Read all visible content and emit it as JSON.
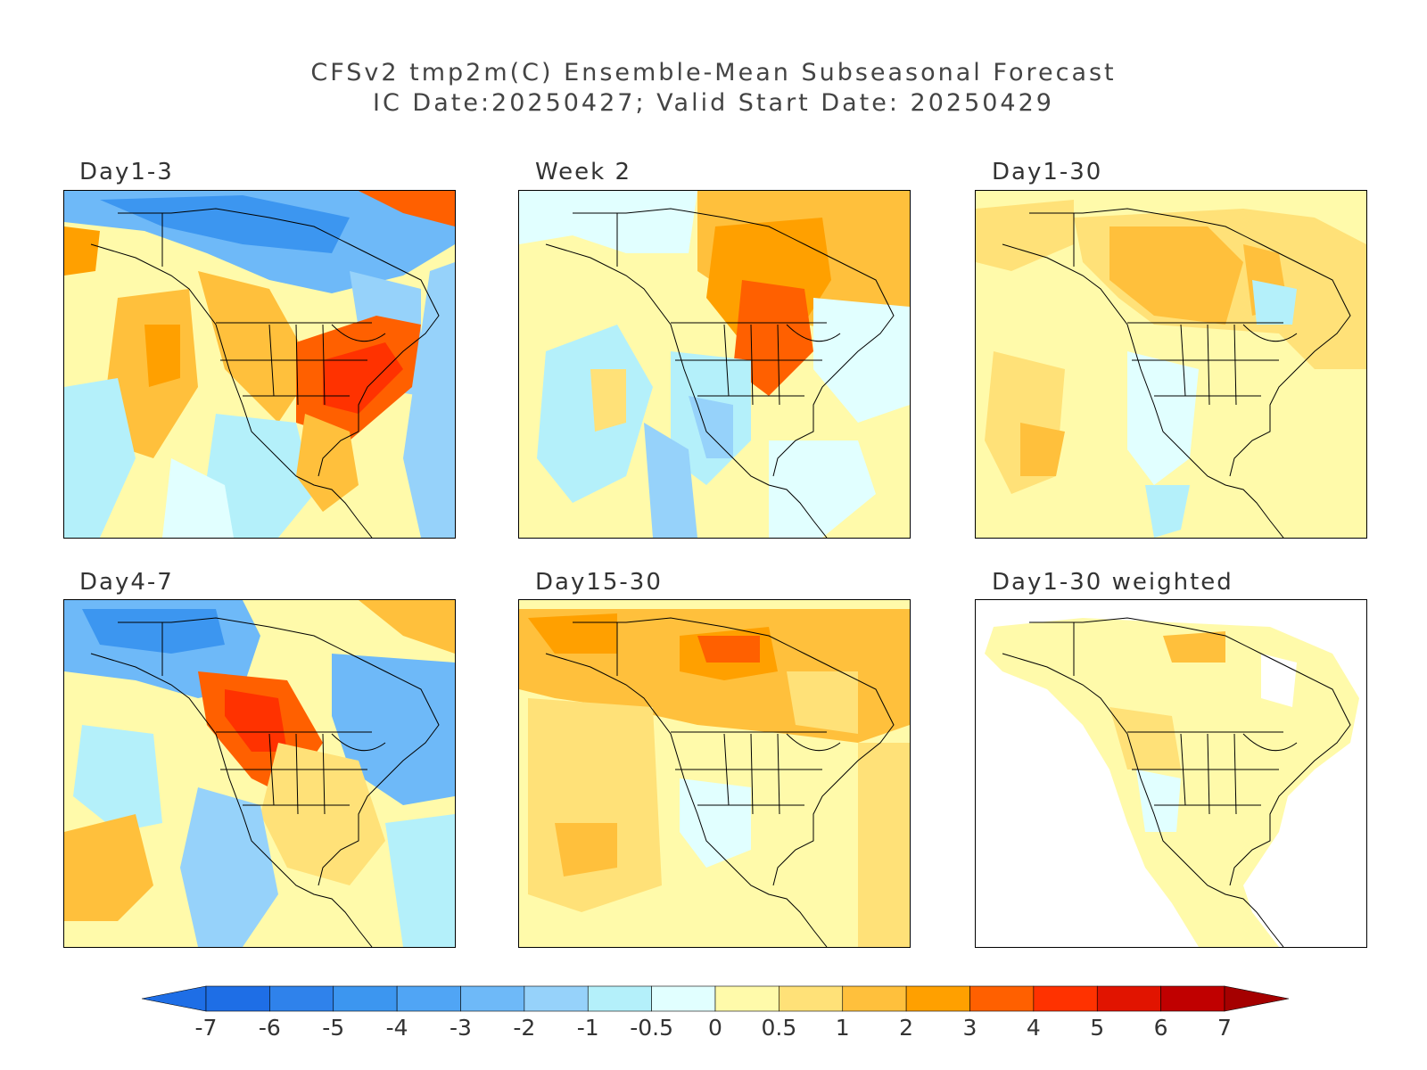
{
  "title": {
    "line1": "CFSv2 tmp2m(C) Ensemble-Mean Subseasonal Forecast",
    "line2": "IC Date:20250427; Valid Start Date: 20250429"
  },
  "panels": [
    {
      "label": "Day1-3"
    },
    {
      "label": "Week 2"
    },
    {
      "label": "Day1-30"
    },
    {
      "label": "Day4-7"
    },
    {
      "label": "Day15-30"
    },
    {
      "label": "Day1-30 weighted"
    }
  ],
  "colorbar": {
    "ticks": [
      "-7",
      "-6",
      "-5",
      "-4",
      "-3",
      "-2",
      "-1",
      "-0.5",
      "0",
      "0.5",
      "1",
      "2",
      "3",
      "4",
      "5",
      "6",
      "7"
    ],
    "colors": [
      "#1e6ee6",
      "#2f82eb",
      "#3c96f0",
      "#50a5f5",
      "#6eb9f8",
      "#96d2fa",
      "#b4f0fa",
      "#e1ffff",
      "#fffaaa",
      "#ffe178",
      "#ffc03c",
      "#ffa000",
      "#ff6000",
      "#ff3200",
      "#e11400",
      "#c00000"
    ],
    "under_color": "#1e6ee6",
    "over_color": "#a50000"
  }
}
